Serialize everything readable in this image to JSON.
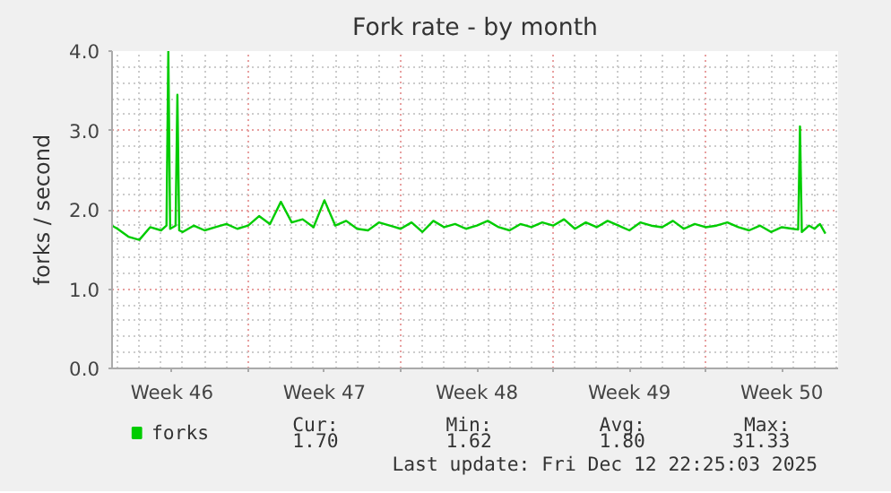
{
  "chart_data": {
    "type": "line",
    "title": "Fork rate - by month",
    "ylabel": "forks / second",
    "x": [
      "2025-11-10T18:00",
      "2025-11-11T00:00",
      "2025-11-11T12:00",
      "2025-11-12T00:00",
      "2025-11-12T12:00",
      "2025-11-13T00:00",
      "2025-11-13T06:00",
      "2025-11-13T08:00",
      "2025-11-13T10:00",
      "2025-11-13T16:00",
      "2025-11-13T18:00",
      "2025-11-13T20:00",
      "2025-11-14T00:00",
      "2025-11-14T12:00",
      "2025-11-15T00:00",
      "2025-11-15T12:00",
      "2025-11-16T00:00",
      "2025-11-16T12:00",
      "2025-11-17T00:00",
      "2025-11-17T12:00",
      "2025-11-18T00:00",
      "2025-11-18T12:00",
      "2025-11-19T00:00",
      "2025-11-19T12:00",
      "2025-11-20T00:00",
      "2025-11-20T12:00",
      "2025-11-21T00:00",
      "2025-11-21T12:00",
      "2025-11-22T00:00",
      "2025-11-22T12:00",
      "2025-11-23T00:00",
      "2025-11-23T12:00",
      "2025-11-24T00:00",
      "2025-11-24T12:00",
      "2025-11-25T00:00",
      "2025-11-25T12:00",
      "2025-11-26T00:00",
      "2025-11-26T12:00",
      "2025-11-27T00:00",
      "2025-11-27T12:00",
      "2025-11-28T00:00",
      "2025-11-28T12:00",
      "2025-11-29T00:00",
      "2025-11-29T12:00",
      "2025-11-30T00:00",
      "2025-11-30T12:00",
      "2025-12-01T00:00",
      "2025-12-01T12:00",
      "2025-12-02T00:00",
      "2025-12-02T12:00",
      "2025-12-03T00:00",
      "2025-12-03T12:00",
      "2025-12-04T00:00",
      "2025-12-04T12:00",
      "2025-12-05T00:00",
      "2025-12-05T12:00",
      "2025-12-06T00:00",
      "2025-12-06T12:00",
      "2025-12-07T00:00",
      "2025-12-07T12:00",
      "2025-12-08T00:00",
      "2025-12-08T12:00",
      "2025-12-09T00:00",
      "2025-12-09T12:00",
      "2025-12-10T00:00",
      "2025-12-10T12:00",
      "2025-12-11T00:00",
      "2025-12-11T12:00",
      "2025-12-12T00:00",
      "2025-12-12T06:00",
      "2025-12-12T08:00",
      "2025-12-12T10:00",
      "2025-12-12T18:00",
      "2025-12-13T00:00",
      "2025-12-13T06:00",
      "2025-12-13T12:00"
    ],
    "series": [
      {
        "name": "forks",
        "color": "#00cc00",
        "values": [
          1.8,
          1.76,
          1.66,
          1.62,
          1.78,
          1.74,
          1.8,
          4.0,
          1.76,
          1.8,
          3.45,
          1.74,
          1.72,
          1.8,
          1.74,
          1.78,
          1.82,
          1.76,
          1.8,
          1.92,
          1.82,
          2.1,
          1.84,
          1.88,
          1.78,
          2.12,
          1.8,
          1.86,
          1.76,
          1.74,
          1.84,
          1.8,
          1.76,
          1.84,
          1.72,
          1.86,
          1.78,
          1.82,
          1.76,
          1.8,
          1.86,
          1.78,
          1.74,
          1.82,
          1.78,
          1.84,
          1.8,
          1.88,
          1.76,
          1.84,
          1.78,
          1.86,
          1.8,
          1.74,
          1.84,
          1.8,
          1.78,
          1.86,
          1.76,
          1.82,
          1.78,
          1.8,
          1.84,
          1.78,
          1.74,
          1.8,
          1.72,
          1.78,
          1.76,
          1.75,
          3.05,
          1.72,
          1.8,
          1.76,
          1.82,
          1.7
        ]
      }
    ],
    "xlim": [
      "2025-11-10T18:00",
      "2025-12-14T02:00"
    ],
    "xticks": [
      {
        "value": "2025-11-13T12:00",
        "label": "Week 46"
      },
      {
        "value": "2025-11-17T00:00",
        "label": null
      },
      {
        "value": "2025-11-20T12:00",
        "label": "Week 47"
      },
      {
        "value": "2025-11-24T00:00",
        "label": null
      },
      {
        "value": "2025-11-27T12:00",
        "label": "Week 48"
      },
      {
        "value": "2025-12-01T00:00",
        "label": null
      },
      {
        "value": "2025-12-04T12:00",
        "label": "Week 49"
      },
      {
        "value": "2025-12-08T00:00",
        "label": null
      },
      {
        "value": "2025-12-11T12:00",
        "label": "Week 50"
      }
    ],
    "ylim": [
      0,
      4.0
    ],
    "yticks": [
      {
        "value": 0,
        "label": "0.0"
      },
      {
        "value": 1,
        "label": "1.0"
      },
      {
        "value": 2,
        "label": "2.0"
      },
      {
        "value": 3,
        "label": "3.0"
      },
      {
        "value": 4,
        "label": "4.0"
      }
    ],
    "grid": true,
    "legend": "bottom",
    "marker": "none",
    "line_style": "solid",
    "annotations": [
      "Cur:",
      "Min:",
      "Avg:",
      "Max:",
      "1.70",
      "1.62",
      "1.80",
      "31.33",
      "Last update: Fri Dec 12 22:25:03 2025"
    ]
  }
}
